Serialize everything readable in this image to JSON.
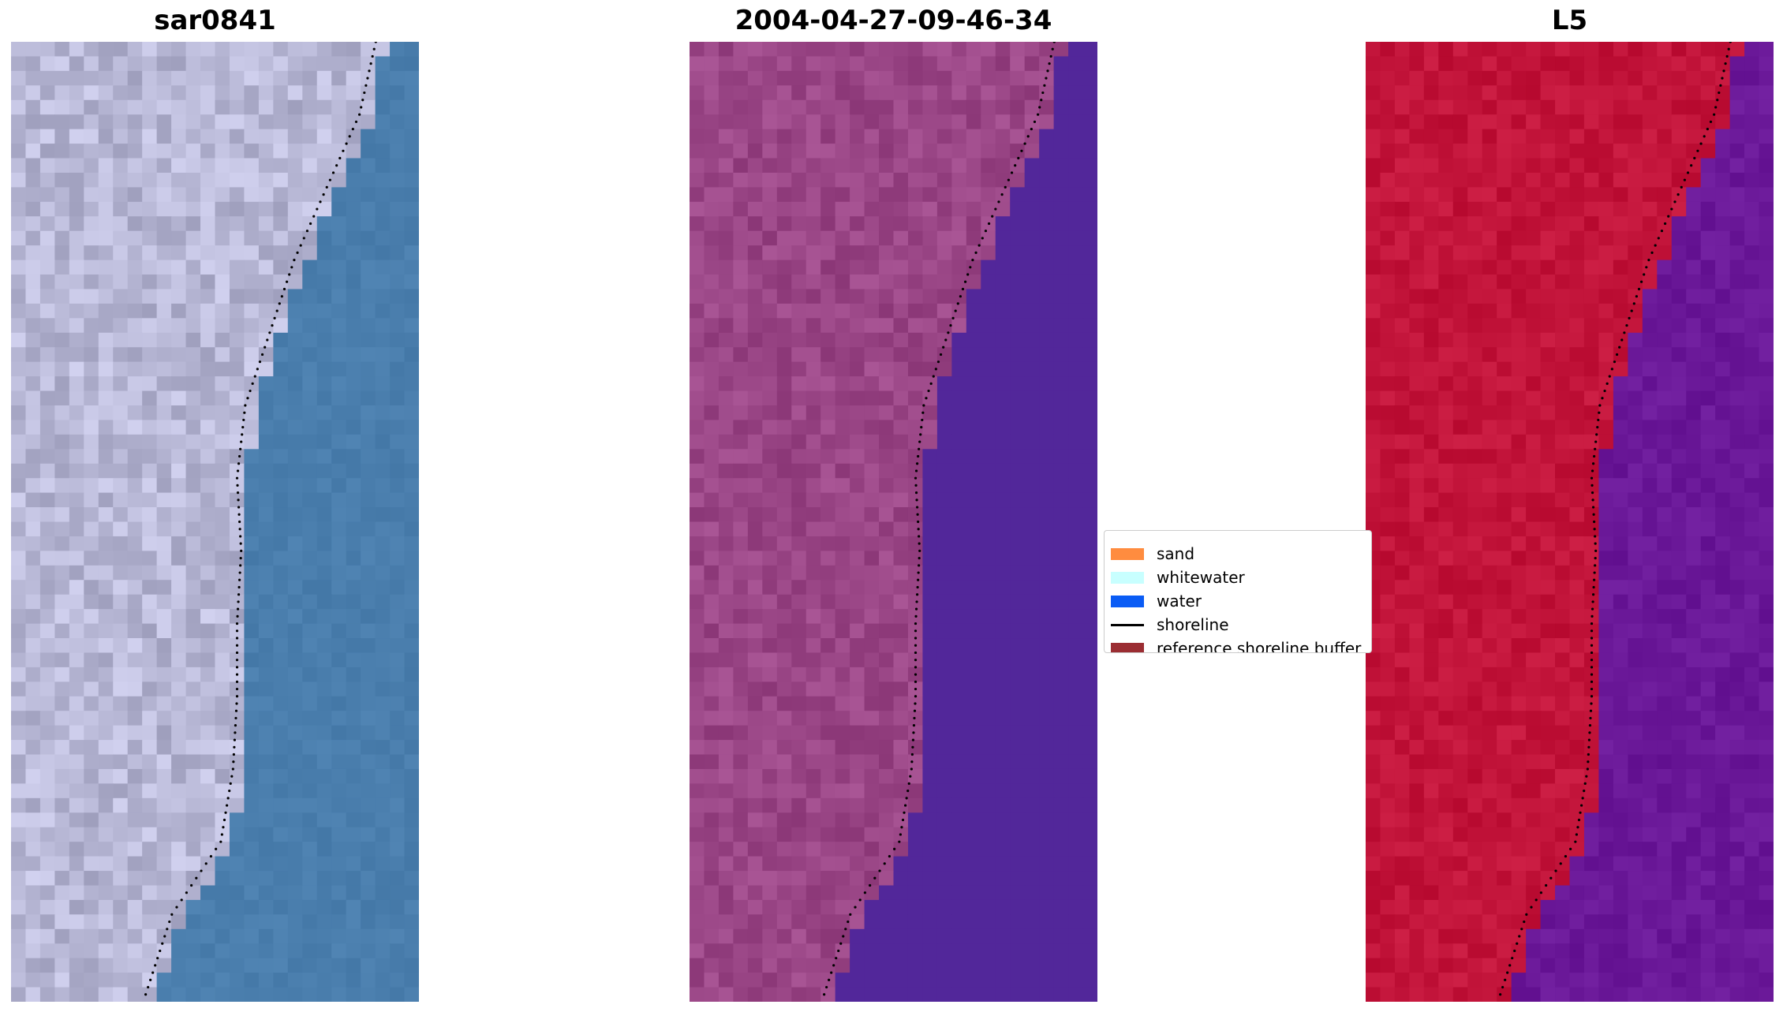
{
  "panels": [
    {
      "title": "sar0841",
      "palette": "rgb",
      "base_color": "#4a7ead"
    },
    {
      "title": "2004-04-27-09-46-34",
      "palette": "false-color",
      "base_color": "#52279a"
    },
    {
      "title": "L5",
      "palette": "index",
      "base_color": "#6a1898"
    }
  ],
  "legend": {
    "items": [
      {
        "label": "sand",
        "color": "#ff8c3f",
        "kind": "patch"
      },
      {
        "label": "whitewater",
        "color": "#c8ffff",
        "kind": "patch"
      },
      {
        "label": "water",
        "color": "#0a5cf5",
        "kind": "patch"
      },
      {
        "label": "shoreline",
        "color": "#000000",
        "kind": "line"
      },
      {
        "label": "reference shoreline buffer",
        "color": "#9b2d32",
        "kind": "patch"
      }
    ]
  },
  "colors": {
    "panel1_land": "#b8b8d6",
    "panel1_water": "#4a7ead",
    "panel2_land": "#9a4686",
    "panel2_water": "#52279a",
    "panel3_land": "#c2143a",
    "panel3_water": "#6a1898",
    "shoreline_dots": "#000000"
  }
}
